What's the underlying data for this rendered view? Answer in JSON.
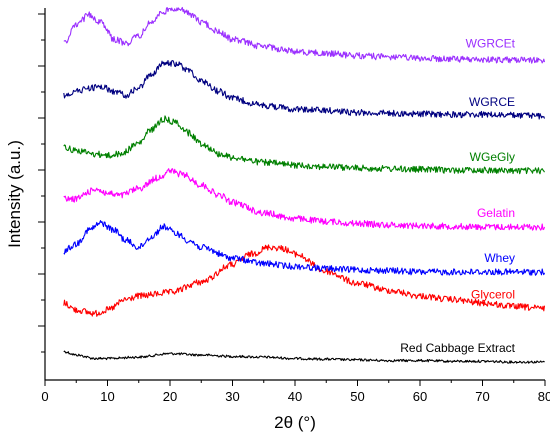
{
  "chart_data": {
    "type": "line",
    "title": "",
    "xlabel": "2θ (°)",
    "ylabel": "Intensity (a.u.)",
    "xlim": [
      0,
      80
    ],
    "x_ticks": [
      "0",
      "10",
      "20",
      "30",
      "40",
      "50",
      "60",
      "70",
      "80"
    ],
    "y_tick_labels": false,
    "grid": false,
    "legend": "inline labels at right end of each curve",
    "series": [
      {
        "name": "Red Cabbage Extract",
        "color": "#000000",
        "offset": 0,
        "x": [
          3,
          5,
          8,
          10,
          15,
          20,
          25,
          30,
          35,
          40,
          45,
          50,
          55,
          60,
          65,
          70,
          75,
          80
        ],
        "y": [
          0.05,
          0.0,
          -0.05,
          -0.05,
          -0.03,
          0.02,
          0.0,
          -0.02,
          -0.03,
          -0.05,
          -0.06,
          -0.07,
          -0.08,
          -0.08,
          -0.09,
          -0.09,
          -0.1,
          -0.1
        ]
      },
      {
        "name": "Glycerol",
        "color": "#ff0000",
        "offset": 1,
        "x": [
          3,
          5,
          8,
          10,
          13,
          15,
          20,
          25,
          30,
          33,
          36,
          38,
          40,
          45,
          50,
          55,
          60,
          65,
          70,
          75,
          80
        ],
        "y": [
          0.0,
          -0.1,
          -0.15,
          -0.1,
          0.05,
          0.1,
          0.15,
          0.3,
          0.55,
          0.7,
          0.8,
          0.78,
          0.7,
          0.45,
          0.28,
          0.18,
          0.1,
          0.05,
          0.0,
          -0.05,
          -0.08
        ]
      },
      {
        "name": "Whey",
        "color": "#0000ff",
        "offset": 2,
        "x": [
          3,
          5,
          7,
          9,
          11,
          13,
          15,
          17,
          19,
          21,
          23,
          25,
          30,
          35,
          40,
          45,
          50,
          55,
          60,
          65,
          70,
          75,
          80
        ],
        "y": [
          0.0,
          0.1,
          0.3,
          0.4,
          0.3,
          0.15,
          0.05,
          0.2,
          0.35,
          0.25,
          0.15,
          0.05,
          -0.1,
          -0.18,
          -0.22,
          -0.25,
          -0.27,
          -0.28,
          -0.3,
          -0.3,
          -0.3,
          -0.3,
          -0.3
        ]
      },
      {
        "name": "Gelatin",
        "color": "#ff00ff",
        "offset": 3,
        "x": [
          3,
          5,
          7,
          8,
          10,
          12,
          15,
          18,
          20,
          22,
          25,
          28,
          30,
          35,
          40,
          45,
          50,
          55,
          60,
          65,
          70,
          75,
          80
        ],
        "y": [
          0.0,
          0.0,
          0.1,
          0.15,
          0.08,
          0.05,
          0.15,
          0.3,
          0.4,
          0.35,
          0.2,
          0.05,
          -0.05,
          -0.2,
          -0.28,
          -0.32,
          -0.35,
          -0.37,
          -0.38,
          -0.39,
          -0.4,
          -0.4,
          -0.4
        ]
      },
      {
        "name": "WGeGly",
        "color": "#008000",
        "offset": 4,
        "x": [
          3,
          5,
          8,
          10,
          12,
          15,
          17,
          19,
          21,
          23,
          25,
          28,
          30,
          35,
          40,
          45,
          50,
          55,
          60,
          65,
          70,
          75,
          80
        ],
        "y": [
          0.0,
          -0.05,
          -0.1,
          -0.12,
          -0.1,
          0.05,
          0.25,
          0.4,
          0.35,
          0.2,
          0.05,
          -0.1,
          -0.15,
          -0.22,
          -0.26,
          -0.28,
          -0.3,
          -0.31,
          -0.32,
          -0.33,
          -0.33,
          -0.34,
          -0.34
        ]
      },
      {
        "name": "WGRCE",
        "color": "#000080",
        "offset": 5,
        "x": [
          3,
          5,
          7,
          9,
          11,
          13,
          15,
          17,
          19,
          21,
          23,
          25,
          28,
          30,
          35,
          40,
          45,
          50,
          55,
          60,
          65,
          70,
          75,
          80
        ],
        "y": [
          0.0,
          0.05,
          0.1,
          0.12,
          0.05,
          0.0,
          0.1,
          0.3,
          0.45,
          0.45,
          0.35,
          0.2,
          0.05,
          -0.05,
          -0.15,
          -0.2,
          -0.22,
          -0.25,
          -0.26,
          -0.27,
          -0.28,
          -0.28,
          -0.29,
          -0.3
        ]
      },
      {
        "name": "WGRCEt",
        "color": "#9b30ff",
        "offset": 6,
        "x": [
          3,
          5,
          7,
          9,
          11,
          13,
          15,
          17,
          19,
          21,
          23,
          25,
          28,
          30,
          35,
          40,
          45,
          50,
          55,
          60,
          65,
          70,
          75,
          80
        ],
        "y": [
          0.0,
          0.25,
          0.4,
          0.3,
          0.05,
          0.0,
          0.1,
          0.3,
          0.45,
          0.5,
          0.42,
          0.3,
          0.15,
          0.05,
          -0.05,
          -0.12,
          -0.15,
          -0.18,
          -0.2,
          -0.22,
          -0.23,
          -0.24,
          -0.24,
          -0.25
        ]
      }
    ]
  }
}
